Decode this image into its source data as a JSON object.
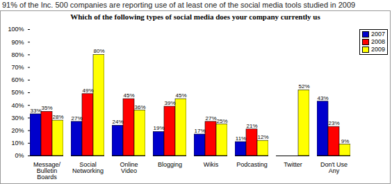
{
  "chart_data": {
    "type": "bar",
    "subtitle": "91% of the Inc. 500 companies are reporting use of at least one of the social media tools studied in 2009",
    "title": "Which of the following types of social media does your company currently us",
    "categories": [
      "Message/ Bulletin Boards",
      "Social Networking",
      "Online Video",
      "Blogging",
      "Wikis",
      "Podcasting",
      "Twitter",
      "Don't Use Any"
    ],
    "series": [
      {
        "name": "2007",
        "color": "#0000cc",
        "values": [
          33,
          27,
          24,
          19,
          17,
          11,
          null,
          43
        ],
        "value_labels": [
          "33%",
          "27%",
          "24%",
          "19%",
          "17%",
          "11%",
          null,
          "43%"
        ]
      },
      {
        "name": "2008",
        "color": "#ff0000",
        "values": [
          35,
          49,
          45,
          39,
          27,
          21,
          null,
          23
        ],
        "value_labels": [
          "35%",
          "49%",
          "45%",
          "39%",
          "27%",
          "21%",
          null,
          "23%"
        ]
      },
      {
        "name": "2009",
        "color": "#ffff00",
        "values": [
          28,
          80,
          36,
          45,
          25,
          12,
          52,
          9
        ],
        "value_labels": [
          "28%",
          "80%",
          "36%",
          "45%",
          "25%",
          "12%",
          "52%",
          "9%"
        ]
      }
    ],
    "ylim": [
      0,
      100
    ],
    "yticks": [
      {
        "value": 0,
        "label": "0%"
      },
      {
        "value": 10,
        "label": "10%"
      },
      {
        "value": 20,
        "label": "20%"
      },
      {
        "value": 30,
        "label": "30%"
      },
      {
        "value": 40,
        "label": "40%"
      },
      {
        "value": 50,
        "label": "50%"
      },
      {
        "value": 60,
        "label": "60%"
      },
      {
        "value": 70,
        "label": "70%"
      },
      {
        "value": 80,
        "label": "80%"
      },
      {
        "value": 90,
        "label": "90%"
      },
      {
        "value": 100,
        "label": "100%"
      }
    ],
    "grid": false,
    "legend": "top-right",
    "data_labels": true
  }
}
